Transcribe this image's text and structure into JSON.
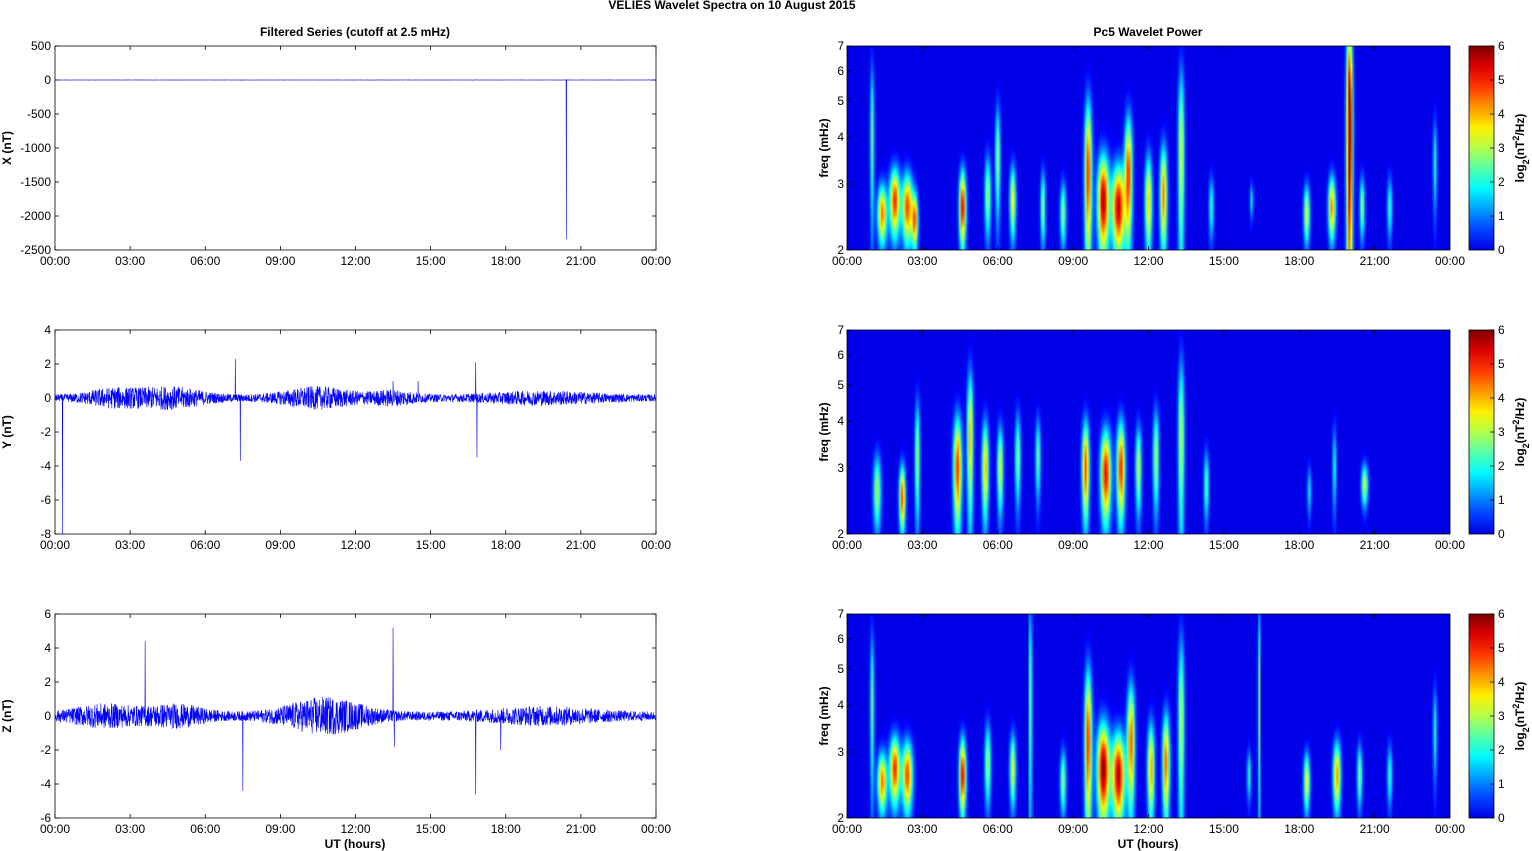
{
  "figure": {
    "title": "VELIES Wavelet Spectra on 10 August    2015",
    "left_title": "Filtered Series (cutoff at 2.5 mHz)",
    "right_title": "Pc5 Wavelet Power",
    "xlabel": "UT (hours)"
  },
  "colors": {
    "trace": "#0000ff",
    "axes": "#000000",
    "bg": "#00008f"
  },
  "chart_data": [
    {
      "type": "line",
      "panel": "x-series",
      "ylabel": "X (nT)",
      "ylim": [
        -2500,
        500
      ],
      "yticks": [
        500,
        0,
        -500,
        -1000,
        -1500,
        -2000,
        -2500
      ],
      "xlim": [
        0,
        24
      ],
      "xticks": [
        "00:00",
        "03:00",
        "06:00",
        "09:00",
        "12:00",
        "15:00",
        "18:00",
        "21:00",
        "00:00"
      ],
      "baseline": 0,
      "noise_amp": 2,
      "spikes": [
        {
          "x": 20.42,
          "y": -2340
        }
      ],
      "bursts": []
    },
    {
      "type": "line",
      "panel": "y-series",
      "ylabel": "Y (nT)",
      "ylim": [
        -8,
        4
      ],
      "yticks": [
        4,
        2,
        0,
        -2,
        -4,
        -6,
        -8
      ],
      "xlim": [
        0,
        24
      ],
      "xticks": [
        "00:00",
        "03:00",
        "06:00",
        "09:00",
        "12:00",
        "15:00",
        "18:00",
        "21:00",
        "00:00"
      ],
      "baseline": 0,
      "noise_amp": 0.2,
      "spikes": [
        {
          "x": 0.3,
          "y": -8
        },
        {
          "x": 7.2,
          "y": 2.3
        },
        {
          "x": 7.4,
          "y": -3.7
        },
        {
          "x": 16.8,
          "y": 2.1
        },
        {
          "x": 16.85,
          "y": -3.5
        },
        {
          "x": 13.5,
          "y": 1.0
        },
        {
          "x": 14.5,
          "y": 1.0
        }
      ],
      "bursts": [
        {
          "center": 2.3,
          "width": 1.2,
          "amp": 0.4
        },
        {
          "center": 4.6,
          "width": 1.5,
          "amp": 0.5
        },
        {
          "center": 10.5,
          "width": 1.6,
          "amp": 0.5
        },
        {
          "center": 13.5,
          "width": 1.0,
          "amp": 0.3
        },
        {
          "center": 19.5,
          "width": 2.5,
          "amp": 0.25
        }
      ]
    },
    {
      "type": "line",
      "panel": "z-series",
      "ylabel": "Z (nT)",
      "ylim": [
        -6,
        6
      ],
      "yticks": [
        6,
        4,
        2,
        0,
        -2,
        -4,
        -6
      ],
      "xlim": [
        0,
        24
      ],
      "xticks": [
        "00:00",
        "03:00",
        "06:00",
        "09:00",
        "12:00",
        "15:00",
        "18:00",
        "21:00",
        "00:00"
      ],
      "baseline": 0,
      "noise_amp": 0.25,
      "spikes": [
        {
          "x": 3.6,
          "y": 4.4
        },
        {
          "x": 7.5,
          "y": -4.4
        },
        {
          "x": 13.5,
          "y": 5.2
        },
        {
          "x": 13.55,
          "y": -1.8
        },
        {
          "x": 16.8,
          "y": -4.6
        },
        {
          "x": 17.8,
          "y": -2.0
        }
      ],
      "bursts": [
        {
          "center": 2.0,
          "width": 1.5,
          "amp": 0.5
        },
        {
          "center": 4.8,
          "width": 1.3,
          "amp": 0.5
        },
        {
          "center": 10.8,
          "width": 1.8,
          "amp": 0.9
        },
        {
          "center": 19.5,
          "width": 2.5,
          "amp": 0.35
        }
      ]
    },
    {
      "type": "heatmap",
      "panel": "x-wavelet",
      "ylabel": "freq (mHz)",
      "ylim": [
        2,
        7
      ],
      "yscale": "log",
      "yticks": [
        2,
        3,
        4,
        5,
        6,
        7
      ],
      "xlim": [
        0,
        24
      ],
      "xticks": [
        "00:00",
        "03:00",
        "06:00",
        "09:00",
        "12:00",
        "15:00",
        "18:00",
        "21:00",
        "00:00"
      ],
      "colorbar_label": "log2(nT^2/Hz)",
      "clim": [
        0,
        6
      ],
      "cticks": [
        0,
        1,
        2,
        3,
        4,
        5,
        6
      ],
      "blobs": [
        {
          "t": 1.4,
          "f": 2.5,
          "w": 0.18,
          "h": 0.45,
          "p": 4.5
        },
        {
          "t": 1.9,
          "f": 2.7,
          "w": 0.2,
          "h": 0.55,
          "p": 5.0
        },
        {
          "t": 2.4,
          "f": 2.6,
          "w": 0.2,
          "h": 0.55,
          "p": 4.8
        },
        {
          "t": 2.7,
          "f": 2.4,
          "w": 0.12,
          "h": 0.4,
          "p": 4.5
        },
        {
          "t": 1.0,
          "f": 4.0,
          "w": 0.08,
          "h": 2.0,
          "p": 2.6
        },
        {
          "t": 4.6,
          "f": 2.6,
          "w": 0.13,
          "h": 0.6,
          "p": 5.4
        },
        {
          "t": 5.6,
          "f": 2.8,
          "w": 0.12,
          "h": 0.7,
          "p": 3.0
        },
        {
          "t": 6.0,
          "f": 3.5,
          "w": 0.1,
          "h": 1.2,
          "p": 3.0
        },
        {
          "t": 6.6,
          "f": 2.7,
          "w": 0.12,
          "h": 0.6,
          "p": 3.6
        },
        {
          "t": 7.8,
          "f": 2.6,
          "w": 0.1,
          "h": 0.6,
          "p": 2.8
        },
        {
          "t": 8.6,
          "f": 2.5,
          "w": 0.12,
          "h": 0.5,
          "p": 2.8
        },
        {
          "t": 9.6,
          "f": 3.2,
          "w": 0.14,
          "h": 1.6,
          "p": 5.0
        },
        {
          "t": 10.2,
          "f": 2.7,
          "w": 0.22,
          "h": 0.8,
          "p": 5.8
        },
        {
          "t": 10.8,
          "f": 2.6,
          "w": 0.25,
          "h": 0.7,
          "p": 5.6
        },
        {
          "t": 11.2,
          "f": 3.2,
          "w": 0.15,
          "h": 1.2,
          "p": 4.8
        },
        {
          "t": 12.0,
          "f": 2.7,
          "w": 0.14,
          "h": 0.8,
          "p": 4.0
        },
        {
          "t": 12.6,
          "f": 2.8,
          "w": 0.14,
          "h": 0.9,
          "p": 4.4
        },
        {
          "t": 13.3,
          "f": 3.6,
          "w": 0.12,
          "h": 2.2,
          "p": 3.4
        },
        {
          "t": 14.5,
          "f": 2.6,
          "w": 0.1,
          "h": 0.5,
          "p": 2.2
        },
        {
          "t": 16.1,
          "f": 2.7,
          "w": 0.07,
          "h": 0.3,
          "p": 1.8
        },
        {
          "t": 18.3,
          "f": 2.5,
          "w": 0.12,
          "h": 0.45,
          "p": 3.4
        },
        {
          "t": 19.3,
          "f": 2.6,
          "w": 0.14,
          "h": 0.5,
          "p": 4.4
        },
        {
          "t": 20.0,
          "f": 4.2,
          "w": 0.12,
          "h": 3.5,
          "p": 6.5
        },
        {
          "t": 20.5,
          "f": 2.6,
          "w": 0.1,
          "h": 0.5,
          "p": 2.8
        },
        {
          "t": 21.6,
          "f": 2.6,
          "w": 0.1,
          "h": 0.5,
          "p": 2.2
        },
        {
          "t": 23.4,
          "f": 3.4,
          "w": 0.08,
          "h": 1.0,
          "p": 2.0
        }
      ]
    },
    {
      "type": "heatmap",
      "panel": "y-wavelet",
      "ylabel": "freq (mHz)",
      "ylim": [
        2,
        7
      ],
      "yscale": "log",
      "yticks": [
        2,
        3,
        4,
        5,
        6,
        7
      ],
      "xlim": [
        0,
        24
      ],
      "xticks": [
        "00:00",
        "03:00",
        "06:00",
        "09:00",
        "12:00",
        "15:00",
        "18:00",
        "21:00",
        "00:00"
      ],
      "colorbar_label": "log2(nT^2/Hz)",
      "clim": [
        0,
        6
      ],
      "cticks": [
        0,
        1,
        2,
        3,
        4,
        5,
        6
      ],
      "blobs": [
        {
          "t": 1.2,
          "f": 2.6,
          "w": 0.15,
          "h": 0.6,
          "p": 3.0
        },
        {
          "t": 2.2,
          "f": 2.5,
          "w": 0.12,
          "h": 0.5,
          "p": 4.8
        },
        {
          "t": 2.8,
          "f": 3.2,
          "w": 0.1,
          "h": 1.2,
          "p": 3.0
        },
        {
          "t": 4.4,
          "f": 3.0,
          "w": 0.16,
          "h": 1.0,
          "p": 5.0
        },
        {
          "t": 4.9,
          "f": 3.6,
          "w": 0.12,
          "h": 1.6,
          "p": 4.0
        },
        {
          "t": 5.5,
          "f": 3.0,
          "w": 0.13,
          "h": 0.9,
          "p": 4.0
        },
        {
          "t": 6.1,
          "f": 3.0,
          "w": 0.12,
          "h": 0.8,
          "p": 3.4
        },
        {
          "t": 6.8,
          "f": 3.2,
          "w": 0.11,
          "h": 0.9,
          "p": 2.8
        },
        {
          "t": 7.6,
          "f": 3.2,
          "w": 0.1,
          "h": 0.8,
          "p": 2.6
        },
        {
          "t": 9.5,
          "f": 3.0,
          "w": 0.14,
          "h": 0.9,
          "p": 4.8
        },
        {
          "t": 10.3,
          "f": 2.9,
          "w": 0.2,
          "h": 0.8,
          "p": 5.3
        },
        {
          "t": 10.9,
          "f": 3.0,
          "w": 0.16,
          "h": 0.9,
          "p": 5.0
        },
        {
          "t": 11.6,
          "f": 3.0,
          "w": 0.12,
          "h": 0.8,
          "p": 3.2
        },
        {
          "t": 12.3,
          "f": 3.2,
          "w": 0.12,
          "h": 1.0,
          "p": 3.0
        },
        {
          "t": 13.3,
          "f": 3.6,
          "w": 0.12,
          "h": 2.0,
          "p": 3.2
        },
        {
          "t": 14.3,
          "f": 2.7,
          "w": 0.1,
          "h": 0.6,
          "p": 2.4
        },
        {
          "t": 18.4,
          "f": 2.6,
          "w": 0.08,
          "h": 0.4,
          "p": 1.8
        },
        {
          "t": 19.4,
          "f": 3.0,
          "w": 0.08,
          "h": 0.8,
          "p": 2.0
        },
        {
          "t": 20.6,
          "f": 2.7,
          "w": 0.13,
          "h": 0.35,
          "p": 3.2
        }
      ]
    },
    {
      "type": "heatmap",
      "panel": "z-wavelet",
      "ylabel": "freq (mHz)",
      "ylim": [
        2,
        7
      ],
      "yscale": "log",
      "yticks": [
        2,
        3,
        4,
        5,
        6,
        7
      ],
      "xlim": [
        0,
        24
      ],
      "xticks": [
        "00:00",
        "03:00",
        "06:00",
        "09:00",
        "12:00",
        "15:00",
        "18:00",
        "21:00",
        "00:00"
      ],
      "colorbar_label": "log2(nT^2/Hz)",
      "clim": [
        0,
        6
      ],
      "cticks": [
        0,
        1,
        2,
        3,
        4,
        5,
        6
      ],
      "blobs": [
        {
          "t": 1.4,
          "f": 2.5,
          "w": 0.18,
          "h": 0.45,
          "p": 4.5
        },
        {
          "t": 1.9,
          "f": 2.7,
          "w": 0.2,
          "h": 0.55,
          "p": 5.0
        },
        {
          "t": 2.4,
          "f": 2.6,
          "w": 0.2,
          "h": 0.55,
          "p": 4.8
        },
        {
          "t": 1.0,
          "f": 4.0,
          "w": 0.08,
          "h": 2.0,
          "p": 2.6
        },
        {
          "t": 4.6,
          "f": 2.6,
          "w": 0.13,
          "h": 0.6,
          "p": 5.4
        },
        {
          "t": 5.6,
          "f": 2.8,
          "w": 0.12,
          "h": 0.7,
          "p": 3.0
        },
        {
          "t": 6.6,
          "f": 2.7,
          "w": 0.12,
          "h": 0.6,
          "p": 3.4
        },
        {
          "t": 7.3,
          "f": 4.2,
          "w": 0.06,
          "h": 3.0,
          "p": 3.0
        },
        {
          "t": 8.6,
          "f": 2.5,
          "w": 0.12,
          "h": 0.5,
          "p": 2.8
        },
        {
          "t": 9.6,
          "f": 3.2,
          "w": 0.14,
          "h": 1.6,
          "p": 5.0
        },
        {
          "t": 10.2,
          "f": 2.7,
          "w": 0.24,
          "h": 0.8,
          "p": 6.0
        },
        {
          "t": 10.8,
          "f": 2.6,
          "w": 0.25,
          "h": 0.7,
          "p": 5.7
        },
        {
          "t": 11.3,
          "f": 3.2,
          "w": 0.15,
          "h": 1.2,
          "p": 4.6
        },
        {
          "t": 12.1,
          "f": 2.7,
          "w": 0.14,
          "h": 0.8,
          "p": 4.2
        },
        {
          "t": 12.7,
          "f": 2.8,
          "w": 0.14,
          "h": 0.9,
          "p": 4.6
        },
        {
          "t": 13.3,
          "f": 3.6,
          "w": 0.12,
          "h": 2.2,
          "p": 3.2
        },
        {
          "t": 16.4,
          "f": 4.2,
          "w": 0.05,
          "h": 3.0,
          "p": 2.8
        },
        {
          "t": 16.0,
          "f": 2.6,
          "w": 0.08,
          "h": 0.4,
          "p": 2.2
        },
        {
          "t": 18.3,
          "f": 2.5,
          "w": 0.12,
          "h": 0.45,
          "p": 3.6
        },
        {
          "t": 19.5,
          "f": 2.6,
          "w": 0.15,
          "h": 0.55,
          "p": 4.2
        },
        {
          "t": 20.4,
          "f": 2.6,
          "w": 0.1,
          "h": 0.5,
          "p": 2.8
        },
        {
          "t": 21.6,
          "f": 2.6,
          "w": 0.1,
          "h": 0.5,
          "p": 2.2
        },
        {
          "t": 23.4,
          "f": 3.4,
          "w": 0.08,
          "h": 1.0,
          "p": 2.0
        }
      ]
    }
  ]
}
